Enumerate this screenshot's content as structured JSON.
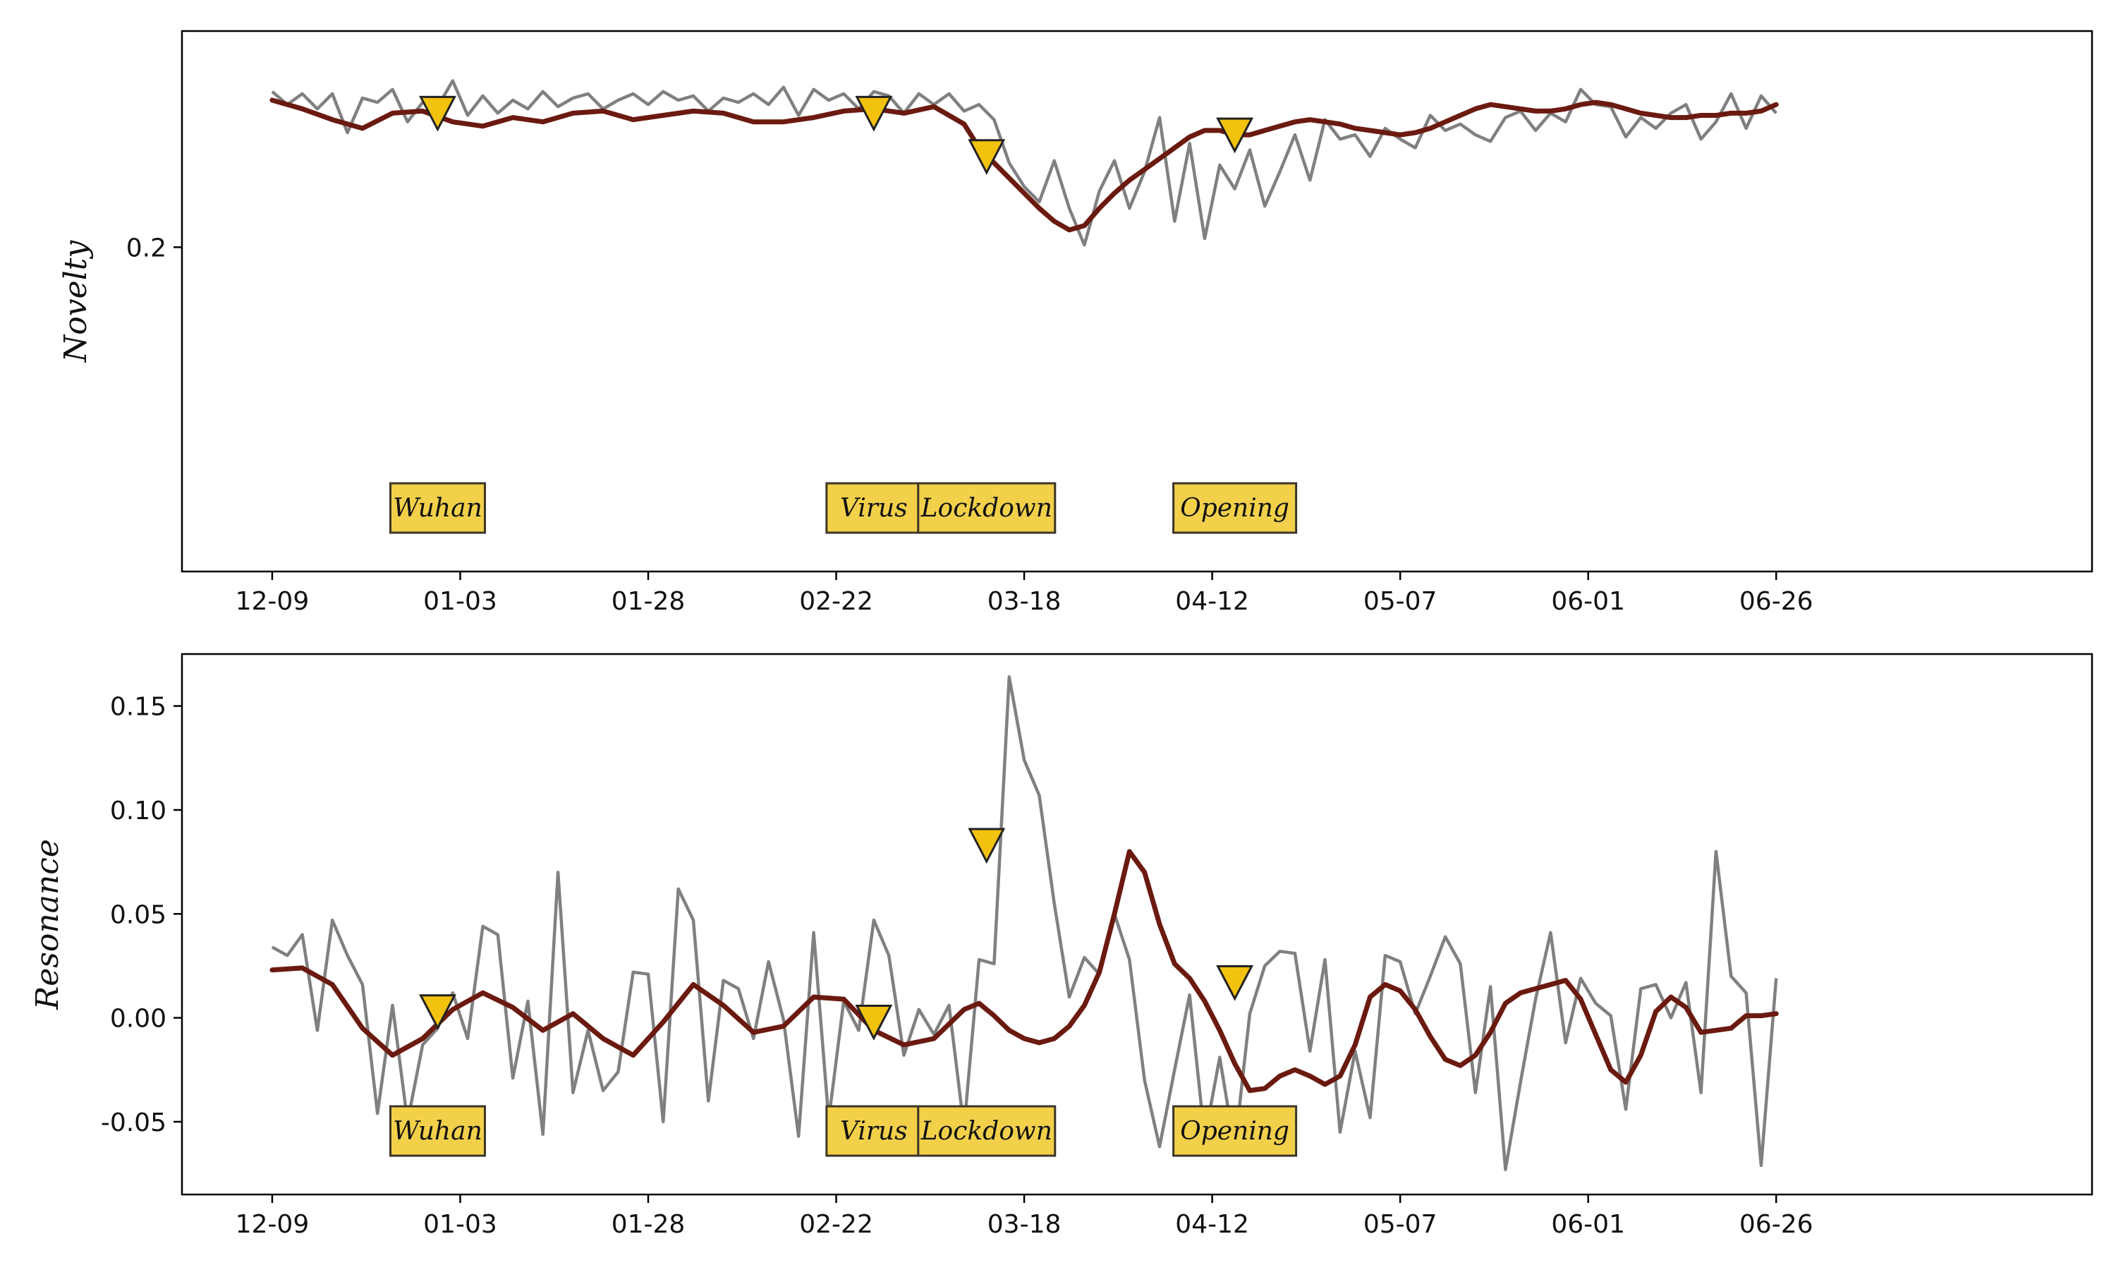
{
  "chart_data": [
    {
      "type": "line",
      "ylabel": "Novelty",
      "ylim": [
        0.185,
        0.21
      ],
      "yticks": [
        0.2
      ],
      "ytick_labels": [
        "0.2"
      ],
      "xlim": [
        -12,
        242
      ],
      "xticks": [
        0,
        25,
        50,
        75,
        100,
        125,
        150,
        175,
        200,
        225
      ],
      "xtick_labels": [
        "12-09",
        "01-03",
        "01-28",
        "02-22",
        "03-18",
        "04-12",
        "05-07",
        "06-01",
        "06-26"
      ],
      "xtick_positions": [
        0,
        25,
        50,
        75,
        100,
        125,
        150,
        175,
        200
      ],
      "series": [
        {
          "style": "raw",
          "color": "#808080",
          "x": [
            0,
            2,
            4,
            6,
            8,
            10,
            12,
            14,
            16,
            18,
            20,
            22,
            24,
            26,
            28,
            30,
            32,
            34,
            36,
            38,
            40,
            42,
            44,
            46,
            48,
            50,
            52,
            54,
            56,
            58,
            60,
            62,
            64,
            66,
            68,
            70,
            72,
            74,
            76,
            78,
            80,
            82,
            84,
            86,
            88,
            90,
            92,
            94,
            96,
            98,
            100,
            102,
            104,
            106,
            108,
            110,
            112,
            114,
            116,
            118,
            120,
            122,
            124,
            126,
            128,
            130,
            132,
            134,
            136,
            138,
            140,
            142,
            144,
            146,
            148,
            150,
            152,
            154,
            156,
            158,
            160,
            162,
            164,
            166,
            168,
            170,
            172,
            174,
            176,
            178,
            180,
            182,
            184,
            186,
            188,
            190,
            192,
            194,
            196,
            198,
            200
          ],
          "y": [
            0.2072,
            0.2066,
            0.2071,
            0.2064,
            0.2071,
            0.2053,
            0.2069,
            0.2067,
            0.2073,
            0.2058,
            0.2067,
            0.2065,
            0.2077,
            0.2061,
            0.207,
            0.2062,
            0.2068,
            0.2064,
            0.2072,
            0.2065,
            0.2069,
            0.2071,
            0.2064,
            0.2068,
            0.2071,
            0.2066,
            0.2072,
            0.2068,
            0.207,
            0.2063,
            0.2069,
            0.2067,
            0.2071,
            0.2066,
            0.2074,
            0.2061,
            0.2073,
            0.2068,
            0.2071,
            0.2064,
            0.2072,
            0.207,
            0.2062,
            0.2071,
            0.2066,
            0.2071,
            0.2063,
            0.2066,
            0.2059,
            0.2039,
            0.2028,
            0.2021,
            0.204,
            0.2018,
            0.2001,
            0.2026,
            0.204,
            0.2018,
            0.2035,
            0.206,
            0.2012,
            0.2048,
            0.2004,
            0.2038,
            0.2027,
            0.2045,
            0.2019,
            0.2035,
            0.2052,
            0.2031,
            0.2059,
            0.205,
            0.2052,
            0.2042,
            0.2055,
            0.205,
            0.2046,
            0.2061,
            0.2054,
            0.2057,
            0.2052,
            0.2049,
            0.206,
            0.2063,
            0.2054,
            0.2062,
            0.2058,
            0.2073,
            0.2066,
            0.2065,
            0.2051,
            0.206,
            0.2055,
            0.2062,
            0.2066,
            0.205,
            0.2058,
            0.2071,
            0.2055,
            0.207,
            0.2062
          ]
        },
        {
          "style": "smooth",
          "color": "#6b1a10",
          "x": [
            0,
            4,
            8,
            12,
            16,
            20,
            24,
            28,
            32,
            36,
            40,
            44,
            48,
            52,
            56,
            60,
            64,
            68,
            72,
            76,
            80,
            84,
            88,
            92,
            94,
            96,
            98,
            100,
            102,
            104,
            106,
            108,
            110,
            112,
            114,
            116,
            118,
            120,
            122,
            124,
            126,
            128,
            130,
            132,
            134,
            136,
            138,
            140,
            142,
            144,
            146,
            148,
            150,
            152,
            154,
            156,
            158,
            160,
            162,
            164,
            166,
            168,
            170,
            172,
            174,
            176,
            178,
            180,
            182,
            184,
            186,
            188,
            190,
            192,
            194,
            196,
            198,
            200
          ],
          "y": [
            0.2068,
            0.2064,
            0.2059,
            0.2055,
            0.2062,
            0.2063,
            0.2058,
            0.2056,
            0.206,
            0.2058,
            0.2062,
            0.2063,
            0.2059,
            0.2061,
            0.2063,
            0.2062,
            0.2058,
            0.2058,
            0.206,
            0.2063,
            0.2064,
            0.2062,
            0.2065,
            0.2057,
            0.2046,
            0.2039,
            0.2032,
            0.2025,
            0.2018,
            0.2012,
            0.2008,
            0.201,
            0.2018,
            0.2025,
            0.2031,
            0.2036,
            0.2041,
            0.2046,
            0.2051,
            0.2054,
            0.2054,
            0.2052,
            0.2052,
            0.2054,
            0.2056,
            0.2058,
            0.2059,
            0.2058,
            0.2057,
            0.2055,
            0.2054,
            0.2053,
            0.2052,
            0.2053,
            0.2055,
            0.2058,
            0.2061,
            0.2064,
            0.2066,
            0.2065,
            0.2064,
            0.2063,
            0.2063,
            0.2064,
            0.2066,
            0.2067,
            0.2066,
            0.2064,
            0.2062,
            0.2061,
            0.206,
            0.206,
            0.2061,
            0.2061,
            0.2062,
            0.2062,
            0.2063,
            0.2066
          ]
        }
      ],
      "markers": [
        {
          "x": 22,
          "y": 0.2062
        },
        {
          "x": 80,
          "y": 0.2062
        },
        {
          "x": 95,
          "y": 0.2042
        },
        {
          "x": 128,
          "y": 0.2052
        }
      ],
      "annotations": [
        {
          "text": "Wuhan",
          "x": 22
        },
        {
          "text": "Virus",
          "x": 80
        },
        {
          "text": "Lockdown",
          "x": 95
        },
        {
          "text": "Opening",
          "x": 128
        }
      ]
    },
    {
      "type": "line",
      "ylabel": "Resonance",
      "ylim": [
        -0.085,
        0.175
      ],
      "yticks": [
        0.15,
        0.1,
        0.05,
        0.0,
        -0.05
      ],
      "ytick_labels": [
        "0.15",
        "0.10",
        "0.05",
        "0.00",
        "-0.05"
      ],
      "xlim": [
        -12,
        242
      ],
      "xtick_labels": [
        "12-09",
        "01-03",
        "01-28",
        "02-22",
        "03-18",
        "04-12",
        "05-07",
        "06-01",
        "06-26"
      ],
      "xtick_positions": [
        0,
        25,
        50,
        75,
        100,
        125,
        150,
        175,
        200
      ],
      "series": [
        {
          "style": "raw",
          "color": "#808080",
          "x": [
            0,
            2,
            4,
            6,
            8,
            10,
            12,
            14,
            16,
            18,
            20,
            22,
            24,
            26,
            28,
            30,
            32,
            34,
            36,
            38,
            40,
            42,
            44,
            46,
            48,
            50,
            52,
            54,
            56,
            58,
            60,
            62,
            64,
            66,
            68,
            70,
            72,
            74,
            76,
            78,
            80,
            82,
            84,
            86,
            88,
            90,
            92,
            94,
            96,
            98,
            100,
            102,
            104,
            106,
            108,
            110,
            112,
            114,
            116,
            118,
            120,
            122,
            124,
            126,
            128,
            130,
            132,
            134,
            136,
            138,
            140,
            142,
            144,
            146,
            148,
            150,
            152,
            154,
            156,
            158,
            160,
            162,
            164,
            166,
            168,
            170,
            172,
            174,
            176,
            178,
            180,
            182,
            184,
            186,
            188,
            190,
            192,
            194,
            196,
            198,
            200
          ],
          "y": [
            0.034,
            0.03,
            0.04,
            -0.006,
            0.047,
            0.03,
            0.016,
            -0.046,
            0.006,
            -0.05,
            -0.013,
            -0.005,
            0.012,
            -0.01,
            0.044,
            0.04,
            -0.029,
            0.008,
            -0.056,
            0.07,
            -0.036,
            -0.006,
            -0.035,
            -0.026,
            0.022,
            0.021,
            -0.05,
            0.062,
            0.047,
            -0.04,
            0.018,
            0.014,
            -0.01,
            0.027,
            -0.001,
            -0.057,
            0.041,
            -0.049,
            0.008,
            -0.006,
            0.047,
            0.03,
            -0.018,
            0.004,
            -0.008,
            0.006,
            -0.053,
            0.028,
            0.026,
            0.164,
            0.124,
            0.107,
            0.055,
            0.01,
            0.029,
            0.021,
            0.05,
            0.028,
            -0.03,
            -0.062,
            -0.025,
            0.011,
            -0.058,
            -0.019,
            -0.063,
            0.002,
            0.025,
            0.032,
            0.031,
            -0.016,
            0.028,
            -0.055,
            -0.016,
            -0.048,
            0.03,
            0.027,
            0.002,
            0.02,
            0.039,
            0.026,
            -0.036,
            0.015,
            -0.073,
            -0.031,
            0.009,
            0.041,
            -0.012,
            0.019,
            0.007,
            0.001,
            -0.044,
            0.014,
            0.016,
            0.0,
            0.017,
            -0.036,
            0.08,
            0.02,
            0.012,
            -0.071,
            0.019
          ]
        },
        {
          "style": "smooth",
          "color": "#6b1a10",
          "x": [
            0,
            4,
            8,
            12,
            16,
            20,
            24,
            28,
            32,
            36,
            40,
            44,
            48,
            52,
            56,
            60,
            64,
            68,
            72,
            76,
            80,
            84,
            88,
            92,
            94,
            96,
            98,
            100,
            102,
            104,
            106,
            108,
            110,
            112,
            114,
            116,
            118,
            120,
            122,
            124,
            126,
            128,
            130,
            132,
            134,
            136,
            138,
            140,
            142,
            144,
            146,
            148,
            150,
            152,
            154,
            156,
            158,
            160,
            162,
            164,
            166,
            168,
            170,
            172,
            174,
            176,
            178,
            180,
            182,
            184,
            186,
            188,
            190,
            192,
            194,
            196,
            198,
            200
          ],
          "y": [
            0.023,
            0.024,
            0.016,
            -0.005,
            -0.018,
            -0.01,
            0.004,
            0.012,
            0.005,
            -0.006,
            0.002,
            -0.01,
            -0.018,
            -0.002,
            0.016,
            0.006,
            -0.007,
            -0.004,
            0.01,
            0.009,
            -0.006,
            -0.013,
            -0.01,
            0.004,
            0.007,
            0.001,
            -0.006,
            -0.01,
            -0.012,
            -0.01,
            -0.004,
            0.006,
            0.022,
            0.05,
            0.08,
            0.07,
            0.045,
            0.026,
            0.019,
            0.008,
            -0.006,
            -0.022,
            -0.035,
            -0.034,
            -0.028,
            -0.025,
            -0.028,
            -0.032,
            -0.028,
            -0.013,
            0.01,
            0.016,
            0.013,
            0.004,
            -0.009,
            -0.02,
            -0.023,
            -0.018,
            -0.007,
            0.007,
            0.012,
            0.014,
            0.016,
            0.018,
            0.009,
            -0.008,
            -0.025,
            -0.031,
            -0.018,
            0.003,
            0.01,
            0.005,
            -0.007,
            -0.006,
            -0.005,
            0.001,
            0.001,
            0.002
          ]
        }
      ],
      "markers": [
        {
          "x": 22,
          "y": 0.003
        },
        {
          "x": 80,
          "y": -0.002
        },
        {
          "x": 95,
          "y": 0.083
        },
        {
          "x": 128,
          "y": 0.017
        }
      ],
      "annotations": [
        {
          "text": "Wuhan",
          "x": 22
        },
        {
          "text": "Virus",
          "x": 80
        },
        {
          "text": "Lockdown",
          "x": 95
        },
        {
          "text": "Opening",
          "x": 128
        }
      ]
    }
  ]
}
